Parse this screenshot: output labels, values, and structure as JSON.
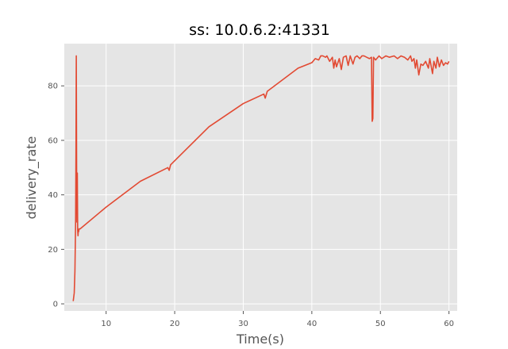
{
  "chart_data": {
    "type": "line",
    "title": "ss: 10.0.6.2:41331",
    "xlabel": "Time(s)",
    "ylabel": "delivery_rate",
    "xlim": [
      3.9,
      61.2
    ],
    "ylim": [
      -2.6,
      95.5
    ],
    "xticks": [
      10,
      20,
      30,
      40,
      50,
      60
    ],
    "yticks": [
      0,
      20,
      40,
      60,
      80
    ],
    "grid": true,
    "colors": {
      "background": "#e5e5e5",
      "grid": "#ffffff",
      "line": "#e24a33",
      "tick": "#555555"
    },
    "series": [
      {
        "x": [
          5.2,
          5.35,
          5.45,
          5.55,
          5.6,
          5.65,
          5.7,
          5.75,
          5.8,
          5.85,
          5.9,
          5.95,
          6.0,
          6.05,
          6.2,
          10,
          15,
          19,
          19.2,
          19.4,
          25,
          30,
          33,
          33.2,
          33.5,
          38,
          40,
          40.5,
          41,
          41.3,
          41.6,
          42,
          42.2,
          42.6,
          43,
          43.2,
          43.4,
          43.6,
          44,
          44.3,
          44.6,
          45,
          45.3,
          45.6,
          46,
          46.3,
          46.6,
          47,
          47.3,
          47.6,
          48,
          48.4,
          48.7,
          48.8,
          48.9,
          49,
          49.3,
          49.8,
          50.2,
          50.8,
          51.3,
          52,
          52.5,
          53,
          53.5,
          54,
          54.4,
          54.6,
          54.9,
          55.1,
          55.3,
          55.6,
          55.9,
          56.2,
          56.6,
          57,
          57.2,
          57.6,
          57.8,
          58.1,
          58.3,
          58.6,
          58.9,
          59.2,
          59.5,
          59.8,
          60
        ],
        "y": [
          1,
          4,
          12,
          30,
          55,
          91,
          48,
          30,
          48,
          27,
          25,
          27,
          26.5,
          27.5,
          27.5,
          35.5,
          45,
          50,
          49,
          51,
          65,
          73.5,
          77,
          75.5,
          78,
          86.5,
          88.5,
          90,
          89.5,
          91,
          91,
          90.5,
          91,
          89,
          90.5,
          86.5,
          89.5,
          87,
          90,
          86,
          90.5,
          91,
          87.5,
          91,
          88,
          90.5,
          91,
          90,
          91,
          91,
          90.5,
          90,
          90.5,
          67,
          68,
          90.5,
          89.5,
          91,
          90,
          91,
          90.5,
          91,
          90,
          91,
          90.5,
          89.5,
          91,
          89,
          90,
          86.5,
          89.5,
          84,
          88,
          87.5,
          89,
          86.5,
          90,
          84.5,
          89,
          86.5,
          90.5,
          87,
          89.5,
          87.5,
          88.5,
          88,
          89
        ]
      }
    ]
  }
}
